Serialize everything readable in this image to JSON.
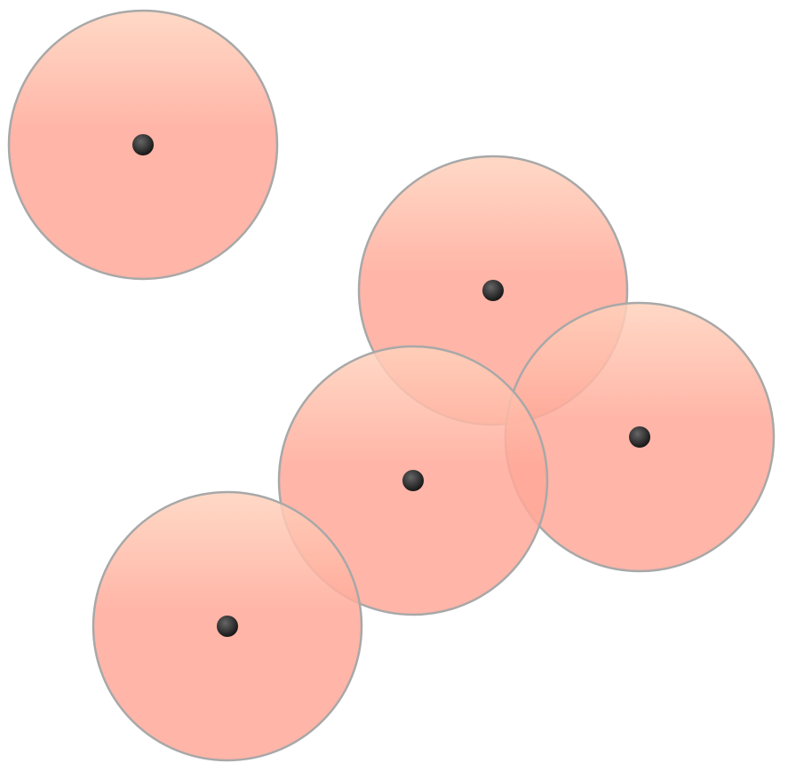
{
  "colors": {
    "background": "#ffffff",
    "disc_fill_top": "#ffd2bc",
    "disc_fill_bottom": "#ffa898",
    "disc_opacity": "0.85",
    "disc_stroke": "#a8a8a8",
    "center_dot": "#111111",
    "center_dot_highlight": "#666666"
  },
  "nodes": [
    {
      "id": "node-1"
    },
    {
      "id": "node-2"
    },
    {
      "id": "node-3"
    },
    {
      "id": "node-4"
    },
    {
      "id": "node-5"
    }
  ]
}
